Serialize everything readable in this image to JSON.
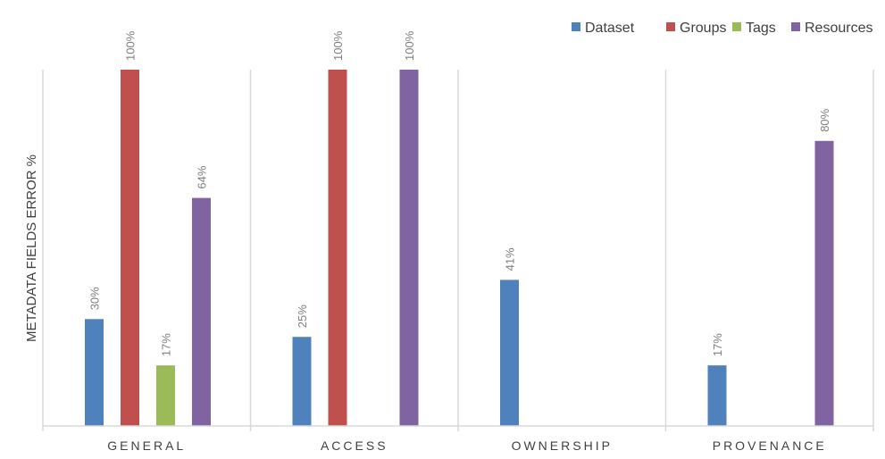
{
  "chart_data": {
    "type": "bar",
    "title": "",
    "xlabel": "",
    "ylabel": "METADATA FIELDS ERROR %",
    "ylim": [
      0,
      100
    ],
    "grid": false,
    "legend_position": "top-right",
    "categories": [
      "GENERAL",
      "ACCESS",
      "OWNERSHIP",
      "PROVENANCE"
    ],
    "series": [
      {
        "name": "Dataset",
        "color": "#4f81bd",
        "values": [
          30,
          25,
          41,
          17
        ],
        "labels": [
          "30%",
          "25%",
          "41%",
          "17%"
        ]
      },
      {
        "name": "Groups",
        "color": "#c0504d",
        "values": [
          100,
          100,
          null,
          null
        ],
        "labels": [
          "100%",
          "100%",
          "",
          ""
        ]
      },
      {
        "name": "Tags",
        "color": "#9bbb59",
        "values": [
          17,
          null,
          null,
          null
        ],
        "labels": [
          "17%",
          "",
          "",
          ""
        ]
      },
      {
        "name": "Resources",
        "color": "#8064a2",
        "values": [
          64,
          100,
          null,
          80
        ],
        "labels": [
          "64%",
          "100%",
          "",
          "80%"
        ]
      }
    ]
  }
}
